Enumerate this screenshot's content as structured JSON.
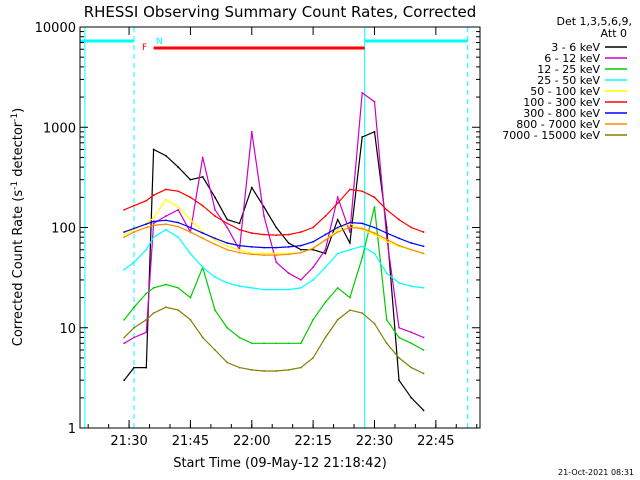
{
  "chart_data": {
    "type": "line",
    "title": "RHESSI Observing Summary Count Rates, Corrected",
    "xlabel": "Start Time (09-May-12 21:18:42)",
    "ylabel": "Corrected Count Rate (s",
    "ylabel_sup1": "-1",
    "ylabel_mid": " detector",
    "ylabel_sup2": "-1",
    "ylabel_end": ")",
    "y_scale": "log",
    "ylim": [
      1,
      10000
    ],
    "xlim_minutes": [
      21.3,
      22.93
    ],
    "x_ticks": [
      {
        "label": "21:30",
        "t": 21.5
      },
      {
        "label": "21:45",
        "t": 21.75
      },
      {
        "label": "22:00",
        "t": 22.0
      },
      {
        "label": "22:15",
        "t": 22.25
      },
      {
        "label": "22:30",
        "t": 22.5
      },
      {
        "label": "22:45",
        "t": 22.75
      }
    ],
    "y_ticks": [
      {
        "label": "1",
        "v": 1
      },
      {
        "label": "10",
        "v": 10
      },
      {
        "label": "100",
        "v": 100
      },
      {
        "label": "1000",
        "v": 1000
      },
      {
        "label": "10000",
        "v": 10000
      }
    ],
    "legend_header": [
      "Det 1,3,5,6,9,",
      "Att 0"
    ],
    "legend_position": "right",
    "flags": {
      "F_label": "F",
      "N_label": "N"
    },
    "footer_date": "21-Oct-2021 08:31",
    "series": [
      {
        "name": "3 - 6 keV",
        "color": "#000000",
        "x": [
          21.48,
          21.52,
          21.57,
          21.6,
          21.65,
          21.7,
          21.75,
          21.8,
          21.85,
          21.9,
          21.95,
          22.0,
          22.05,
          22.1,
          22.15,
          22.2,
          22.25,
          22.3,
          22.35,
          22.4,
          22.45,
          22.5,
          22.55,
          22.6,
          22.65,
          22.7
        ],
        "values": [
          3,
          4,
          4,
          600,
          520,
          400,
          300,
          320,
          200,
          120,
          110,
          250,
          160,
          100,
          70,
          60,
          60,
          55,
          120,
          70,
          800,
          900,
          100,
          3,
          2,
          1.5
        ]
      },
      {
        "name": "6 - 12 keV",
        "color": "#cc00cc",
        "x": [
          21.48,
          21.52,
          21.57,
          21.6,
          21.65,
          21.7,
          21.75,
          21.8,
          21.85,
          21.9,
          21.95,
          22.0,
          22.05,
          22.1,
          22.15,
          22.2,
          22.25,
          22.3,
          22.35,
          22.4,
          22.45,
          22.5,
          22.55,
          22.6,
          22.65,
          22.7
        ],
        "values": [
          7,
          8,
          9,
          110,
          130,
          150,
          90,
          500,
          150,
          100,
          60,
          900,
          130,
          45,
          35,
          30,
          40,
          60,
          200,
          90,
          2200,
          1800,
          80,
          10,
          9,
          8
        ]
      },
      {
        "name": "12 - 25 keV",
        "color": "#00cc00",
        "x": [
          21.48,
          21.52,
          21.57,
          21.6,
          21.65,
          21.7,
          21.75,
          21.8,
          21.85,
          21.9,
          21.95,
          22.0,
          22.05,
          22.1,
          22.15,
          22.2,
          22.25,
          22.3,
          22.35,
          22.4,
          22.45,
          22.5,
          22.55,
          22.6,
          22.65,
          22.7
        ],
        "values": [
          12,
          16,
          22,
          25,
          27,
          25,
          20,
          40,
          15,
          10,
          8,
          7,
          7,
          7,
          7,
          7,
          12,
          18,
          25,
          20,
          50,
          160,
          12,
          8,
          7,
          6
        ]
      },
      {
        "name": "25 - 50 keV",
        "color": "#00ffff",
        "x": [
          21.48,
          21.52,
          21.57,
          21.6,
          21.65,
          21.7,
          21.75,
          21.8,
          21.85,
          21.9,
          21.95,
          22.0,
          22.05,
          22.1,
          22.15,
          22.2,
          22.25,
          22.3,
          22.35,
          22.4,
          22.45,
          22.5,
          22.55,
          22.6,
          22.65,
          22.7
        ],
        "values": [
          38,
          45,
          60,
          80,
          95,
          80,
          55,
          40,
          32,
          28,
          26,
          25,
          24,
          24,
          24,
          25,
          30,
          40,
          55,
          60,
          65,
          55,
          35,
          28,
          26,
          25
        ]
      },
      {
        "name": "50 - 100 keV",
        "color": "#ffff00",
        "x": [
          21.48,
          21.52,
          21.57,
          21.6,
          21.65,
          21.7,
          21.75,
          21.8,
          21.85,
          21.9,
          21.95,
          22.0,
          22.05,
          22.1,
          22.15,
          22.2,
          22.25,
          22.3,
          22.35,
          22.4,
          22.45,
          22.5,
          22.55,
          22.6,
          22.65,
          22.7
        ],
        "values": [
          85,
          95,
          110,
          125,
          190,
          160,
          120,
          90,
          75,
          65,
          60,
          55,
          55,
          55,
          55,
          56,
          62,
          75,
          95,
          110,
          95,
          85,
          72,
          65,
          60,
          55
        ]
      },
      {
        "name": "100 - 300 keV",
        "color": "#ff0000",
        "x": [
          21.48,
          21.52,
          21.57,
          21.6,
          21.65,
          21.7,
          21.75,
          21.8,
          21.85,
          21.9,
          21.95,
          22.0,
          22.05,
          22.1,
          22.15,
          22.2,
          22.25,
          22.3,
          22.35,
          22.4,
          22.45,
          22.5,
          22.55,
          22.6,
          22.65,
          22.7
        ],
        "values": [
          150,
          165,
          185,
          210,
          240,
          230,
          200,
          165,
          130,
          110,
          95,
          88,
          85,
          84,
          85,
          90,
          100,
          130,
          175,
          240,
          230,
          200,
          150,
          120,
          100,
          90
        ]
      },
      {
        "name": "300 - 800 keV",
        "color": "#0000ff",
        "x": [
          21.48,
          21.52,
          21.57,
          21.6,
          21.65,
          21.7,
          21.75,
          21.8,
          21.85,
          21.9,
          21.95,
          22.0,
          22.05,
          22.1,
          22.15,
          22.2,
          22.25,
          22.3,
          22.35,
          22.4,
          22.45,
          22.5,
          22.55,
          22.6,
          22.65,
          22.7
        ],
        "values": [
          90,
          98,
          108,
          115,
          118,
          112,
          100,
          88,
          78,
          70,
          66,
          64,
          63,
          63,
          64,
          66,
          72,
          85,
          100,
          112,
          110,
          100,
          88,
          78,
          70,
          65
        ]
      },
      {
        "name": "800 - 7000 keV",
        "color": "#ff8800",
        "x": [
          21.48,
          21.52,
          21.57,
          21.6,
          21.65,
          21.7,
          21.75,
          21.8,
          21.85,
          21.9,
          21.95,
          22.0,
          22.05,
          22.1,
          22.15,
          22.2,
          22.25,
          22.3,
          22.35,
          22.4,
          22.45,
          22.5,
          22.55,
          22.6,
          22.65,
          22.7
        ],
        "values": [
          80,
          90,
          100,
          105,
          108,
          102,
          90,
          78,
          68,
          60,
          56,
          54,
          53,
          53,
          54,
          56,
          62,
          75,
          90,
          100,
          98,
          88,
          76,
          66,
          60,
          55
        ]
      },
      {
        "name": "7000 - 15000 keV",
        "color": "#808000",
        "x": [
          21.48,
          21.52,
          21.57,
          21.6,
          21.65,
          21.7,
          21.75,
          21.8,
          21.85,
          21.9,
          21.95,
          22.0,
          22.05,
          22.1,
          22.15,
          22.2,
          22.25,
          22.3,
          22.35,
          22.4,
          22.45,
          22.5,
          22.55,
          22.6,
          22.65,
          22.7
        ],
        "values": [
          8,
          10,
          12,
          14,
          16,
          15,
          12,
          8,
          6,
          4.5,
          4,
          3.8,
          3.7,
          3.7,
          3.8,
          4,
          5,
          8,
          12,
          15,
          14,
          11,
          7,
          5,
          4,
          3.5
        ]
      }
    ],
    "flag_bars": [
      {
        "name": "F",
        "color": "#ff0000",
        "x_start": 21.6,
        "x_end": 22.46
      },
      {
        "name": "N",
        "color": "#00ffff",
        "x_start": 21.3,
        "x_end": 21.52
      },
      {
        "name": "N",
        "color": "#00ffff",
        "x_start": 22.46,
        "x_end": 22.88
      }
    ],
    "vertical_markers": [
      {
        "x": 21.32,
        "color": "#00ffff",
        "style": "solid"
      },
      {
        "x": 21.52,
        "color": "#00ffff",
        "style": "dashed"
      },
      {
        "x": 22.46,
        "color": "#00ffff",
        "style": "solid"
      },
      {
        "x": 22.88,
        "color": "#00ffff",
        "style": "dashed"
      }
    ]
  }
}
